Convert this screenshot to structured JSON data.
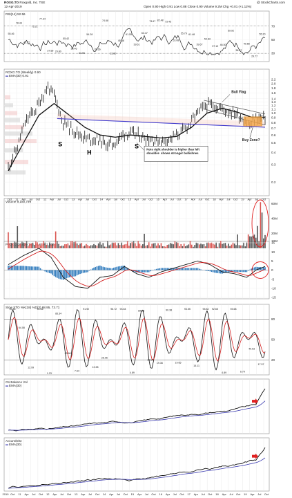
{
  "header": {
    "symbol": "ROXG.TO",
    "company": "Roxgold, Inc.",
    "exchange": "TSE",
    "date": "12-Apr-2019",
    "ohlc": "Open 0.90  High 0.91  Low 0.88  Close 0.90  Volume 9.2M  Chg +0.01 (+1.12%)",
    "copyright": "@ StockCharts.com"
  },
  "chart_data": {
    "type": "line",
    "x_axis_top": [
      "Oct",
      "11",
      "Apr",
      "Jul",
      "Oct",
      "12",
      "Apr",
      "Jul",
      "Oct",
      "13",
      "Apr",
      "Jul",
      "Oct",
      "14",
      "Apr",
      "Jul",
      "Oct",
      "15",
      "Apr",
      "Jul",
      "Oct",
      "16",
      "Apr",
      "Jul",
      "Oct",
      "17",
      "Apr",
      "Jul",
      "Oct",
      "18",
      "Apr",
      "Jul",
      "Oct",
      "19",
      "Apr",
      "Jul",
      "Oct"
    ],
    "x_axis_bottom": [
      "2010",
      "Oct",
      "11",
      "Apr",
      "Jul",
      "Oct",
      "12",
      "Apr",
      "Jul",
      "Oct",
      "13",
      "Apr",
      "Jul",
      "Oct",
      "14",
      "Apr",
      "Jul",
      "Oct",
      "15",
      "Apr",
      "Jul",
      "Oct",
      "16",
      "Apr",
      "Jul",
      "Oct",
      "17",
      "Apr",
      "Jul",
      "Oct",
      "18",
      "Apr",
      "Jul",
      "Oct",
      "19",
      "Apr",
      "Jul",
      "Oct"
    ],
    "panels": [
      {
        "id": "rsi",
        "title": "RSI(14) 52.56",
        "y_ticks": [
          "70",
          "50",
          "30"
        ],
        "ylim": [
          20,
          90
        ],
        "value_labels": [
          "55.46",
          "78.44",
          "42.72",
          "73.21",
          "77.34",
          "37.56",
          "29.80",
          "55.42",
          "33.46",
          "34.05",
          "54.28",
          "39.66",
          "74.68",
          "33.80",
          "45.46",
          "61.55",
          "39.61",
          "63.47",
          "73.67",
          "82.48",
          "73.45",
          "53.08",
          "55.79",
          "61.48",
          "39.67",
          "54.83",
          "37.19",
          "46.50",
          "59.92",
          "38.37",
          "40.55",
          "29.77",
          "55.20"
        ]
      },
      {
        "id": "price",
        "title": "ROXG.TO (Weekly) 0.90",
        "legend": "EMA(30) 0.91",
        "scale": "log",
        "y_ticks": [
          "2.2",
          "2.0",
          "1.8",
          "1.6",
          "1.4",
          "1.3",
          "1.2",
          "1.1",
          "1.0",
          "0.9",
          "0.8",
          "0.7",
          "0.6",
          "0.5",
          "0.4",
          "0.3",
          "0.2"
        ],
        "ylim": [
          0.15,
          2.3
        ],
        "annotations": {
          "bull_flag": "Bull Flag",
          "buy_zone": "Buy Zone?",
          "left_shoulder": "S",
          "head": "H",
          "right_shoulder": "S",
          "note": "Note right shoulder is higher than left shoulder- shows stronger bullishnes"
        }
      },
      {
        "id": "volume",
        "title": "Volume 9,180,799",
        "y_ticks": [
          "60M",
          "40M",
          "20M",
          "10M"
        ],
        "ylim": [
          0,
          65
        ]
      },
      {
        "id": "ppo",
        "title": "PPO(12,26,9) 0.245, -1.619, 1.865",
        "y_ticks": [
          "15",
          "10",
          "5",
          "0",
          "-5",
          "-10",
          "-15"
        ],
        "ylim": [
          -15,
          15
        ]
      },
      {
        "id": "sto",
        "title": "Slow STO %K(18) %D(3) 68.95, 73.71",
        "y_ticks": [
          "80",
          "50",
          "20"
        ],
        "ylim": [
          0,
          100
        ],
        "value_labels": [
          "93.46",
          "64.08",
          "12.99",
          "94.46",
          "1.23",
          "85.34",
          "33.66",
          "7.64",
          "91.92",
          "13.38",
          "26.96",
          "96.72",
          "93.64",
          "4.89",
          "89.28",
          "23.99",
          "19.36",
          "90.38",
          "19.65",
          "93.55",
          "15.11",
          "95.82",
          "92.65",
          "4.89",
          "93.68",
          "6.79",
          "40.53",
          "17.57"
        ]
      },
      {
        "id": "obv",
        "title": "On Balance Vol",
        "legend": "EMA(30)"
      },
      {
        "id": "ad",
        "title": "Accum/Dist",
        "legend": "EMA(30)"
      }
    ],
    "series": [
      {
        "name": "ROXG.TO",
        "panel": "price",
        "x": [
          0,
          6,
          12,
          18,
          22,
          26,
          30,
          35,
          40,
          46,
          52,
          58,
          64,
          70,
          76,
          82,
          88,
          94,
          100,
          106,
          112,
          118,
          124,
          130,
          136,
          142,
          148,
          152,
          156,
          158,
          160,
          162,
          164,
          168
        ],
        "values": [
          0.28,
          0.45,
          0.85,
          1.1,
          1.45,
          1.85,
          1.5,
          0.85,
          0.72,
          0.62,
          0.55,
          0.55,
          0.48,
          0.5,
          0.63,
          0.62,
          0.58,
          0.54,
          0.52,
          0.56,
          0.62,
          0.75,
          1.02,
          1.22,
          1.18,
          1.08,
          1.02,
          0.92,
          0.82,
          0.74,
          0.82,
          0.9,
          0.88,
          0.9
        ]
      },
      {
        "name": "EMA(30)",
        "panel": "price",
        "x": [
          0,
          10,
          20,
          30,
          40,
          50,
          60,
          70,
          80,
          90,
          100,
          110,
          120,
          130,
          140,
          150,
          160,
          168
        ],
        "values": [
          0.26,
          0.5,
          0.95,
          1.25,
          0.95,
          0.72,
          0.6,
          0.57,
          0.6,
          0.58,
          0.56,
          0.58,
          0.72,
          1.0,
          1.12,
          1.02,
          0.9,
          0.91
        ]
      }
    ]
  }
}
